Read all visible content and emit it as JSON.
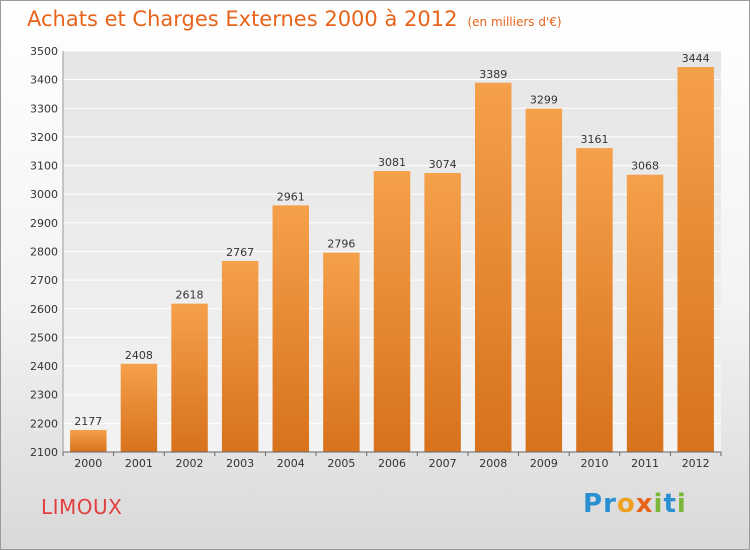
{
  "chart_data": {
    "type": "bar",
    "title": "Achats et Charges Externes 2000 à 2012",
    "unit": "(en milliers d'€)",
    "categories": [
      "2000",
      "2001",
      "2002",
      "2003",
      "2004",
      "2005",
      "2006",
      "2007",
      "2008",
      "2009",
      "2010",
      "2011",
      "2012"
    ],
    "values": [
      2177,
      2408,
      2618,
      2767,
      2961,
      2796,
      3081,
      3074,
      3389,
      3299,
      3161,
      3068,
      3444
    ],
    "ylim": [
      2100,
      3500
    ],
    "yticks": [
      2100,
      2200,
      2300,
      2400,
      2500,
      2600,
      2700,
      2800,
      2900,
      3000,
      3100,
      3200,
      3300,
      3400,
      3500
    ],
    "grid": true,
    "bar_color": "#f5a04a",
    "bar_color_dark": "#d8721c"
  },
  "location": "LIMOUX",
  "logo": [
    "P",
    "r",
    "o",
    "x",
    "i",
    "t",
    "i"
  ]
}
